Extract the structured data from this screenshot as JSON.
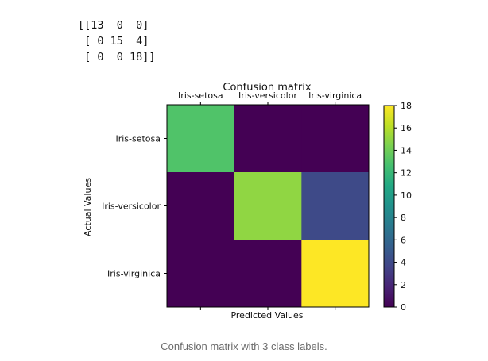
{
  "console": {
    "lines": [
      "[[13  0  0]",
      " [ 0 15  4]",
      " [ 0  0 18]]"
    ]
  },
  "chart_data": {
    "type": "heatmap",
    "title": "Confusion matrix",
    "xlabel": "Predicted Values",
    "ylabel": "Actual Values",
    "x_categories": [
      "Iris-setosa",
      "Iris-versicolor",
      "Iris-virginica"
    ],
    "y_categories": [
      "Iris-setosa",
      "Iris-versicolor",
      "Iris-virginica"
    ],
    "values": [
      [
        13,
        0,
        0
      ],
      [
        0,
        15,
        4
      ],
      [
        0,
        0,
        18
      ]
    ],
    "colormap": "viridis",
    "colorbar": {
      "range": [
        0,
        18
      ],
      "ticks": [
        "0",
        "2",
        "4",
        "6",
        "8",
        "10",
        "12",
        "14",
        "16",
        "18"
      ]
    },
    "x_tick_position": "top",
    "grid": false
  },
  "caption": "Confusion matrix with 3 class labels."
}
